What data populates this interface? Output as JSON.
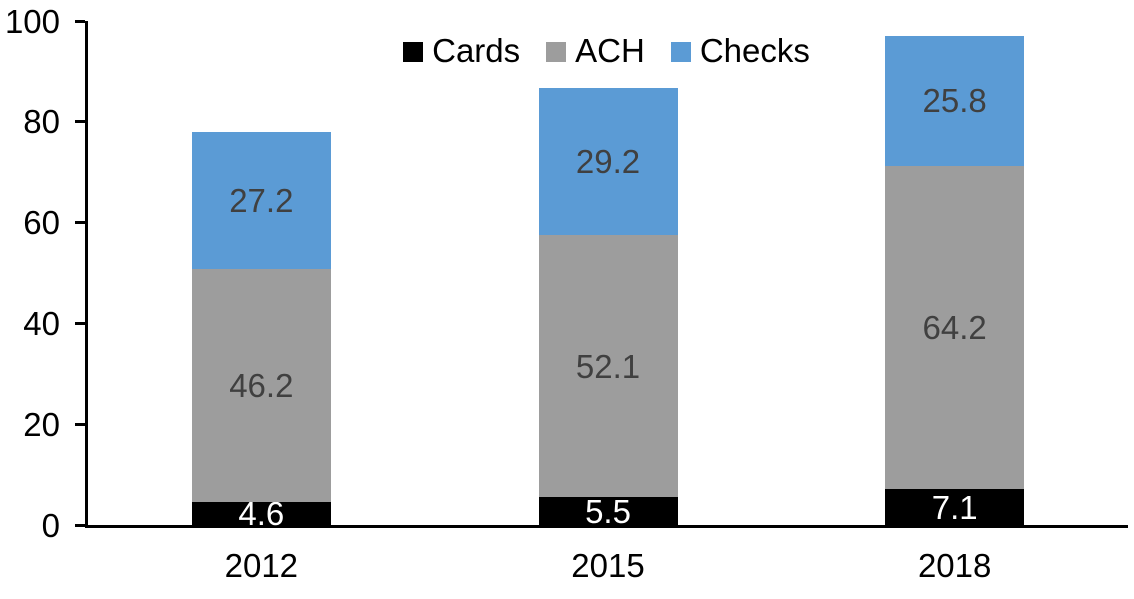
{
  "chart_data": {
    "type": "bar",
    "stacked": true,
    "title": "",
    "categories": [
      "2012",
      "2015",
      "2018"
    ],
    "series": [
      {
        "name": "Cards",
        "color": "#000000",
        "label_color": "#ffffff",
        "values": [
          4.6,
          5.5,
          7.1
        ]
      },
      {
        "name": "ACH",
        "color": "#9d9d9d",
        "label_color": "#404040",
        "values": [
          46.2,
          52.1,
          64.2
        ]
      },
      {
        "name": "Checks",
        "color": "#5b9bd5",
        "label_color": "#404040",
        "values": [
          27.2,
          29.2,
          25.8
        ]
      }
    ],
    "data_labels": [
      "4.6",
      "5.5",
      "7.1",
      "46.2",
      "52.1",
      "64.2",
      "27.2",
      "29.2",
      "25.8"
    ],
    "xlabel": "",
    "ylabel": "",
    "ylim": [
      0,
      100
    ],
    "yticks": [
      0,
      20,
      40,
      60,
      80,
      100
    ],
    "grid": false,
    "legend_position": "top-center",
    "axis_color": "#000000"
  }
}
